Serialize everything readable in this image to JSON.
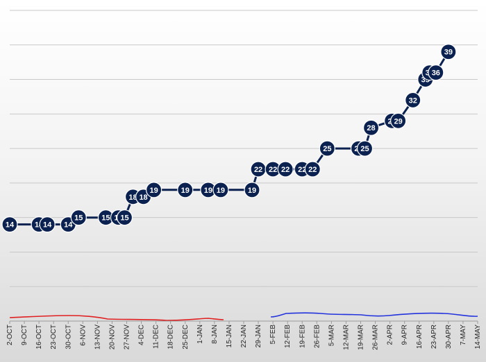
{
  "chart_data": {
    "type": "line",
    "title": "",
    "xlabel": "",
    "ylabel": "",
    "grid": true,
    "ylim": [
      0,
      45
    ],
    "colors": {
      "main": "#0b2150",
      "red": "#e02020",
      "blue": "#2233dd",
      "marker": "#0b2150"
    },
    "x_ticks": [
      "2-OCT",
      "9-OCT",
      "16-OCT",
      "23-OCT",
      "30-OCT",
      "6-NOV",
      "13-NOV",
      "20-NOV",
      "27-NOV",
      "4-DEC",
      "11-DEC",
      "18-DEC",
      "25-DEC",
      "1-JAN",
      "8-JAN",
      "15-JAN",
      "22-JAN",
      "29-JAN",
      "5-FEB",
      "12-FEB",
      "19-FEB",
      "26-FEB",
      "5-MAR",
      "12-MAR",
      "19-MAR",
      "26-MAR",
      "2-APR",
      "9-APR",
      "16-APR",
      "23-APR",
      "30-APR",
      "7-MAY",
      "14-MAY"
    ],
    "series": [
      {
        "points": [
          {
            "x": "2-OCT",
            "y": 14
          },
          {
            "x": "16-OCT",
            "y": 14
          },
          {
            "x": "20-OCT",
            "y": 14
          },
          {
            "x": "30-OCT",
            "y": 14
          },
          {
            "x": "4-NOV",
            "y": 15
          },
          {
            "x": "17-NOV",
            "y": 15
          },
          {
            "x": "23-NOV",
            "y": 15
          },
          {
            "x": "26-NOV",
            "y": 15
          },
          {
            "x": "30-NOV",
            "y": 18
          },
          {
            "x": "5-DEC",
            "y": 18
          },
          {
            "x": "10-DEC",
            "y": 19
          },
          {
            "x": "25-DEC",
            "y": 19
          },
          {
            "x": "5-JAN",
            "y": 19
          },
          {
            "x": "11-JAN",
            "y": 19
          },
          {
            "x": "26-JAN",
            "y": 19
          },
          {
            "x": "29-JAN",
            "y": 22
          },
          {
            "x": "5-FEB",
            "y": 22
          },
          {
            "x": "11-FEB",
            "y": 22
          },
          {
            "x": "19-FEB",
            "y": 22
          },
          {
            "x": "24-FEB",
            "y": 22
          },
          {
            "x": "3-MAR",
            "y": 25
          },
          {
            "x": "18-MAR",
            "y": 25
          },
          {
            "x": "21-MAR",
            "y": 25
          },
          {
            "x": "24-MAR",
            "y": 28
          },
          {
            "x": "3-APR",
            "y": 29
          },
          {
            "x": "6-APR",
            "y": 29
          },
          {
            "x": "13-APR",
            "y": 32
          },
          {
            "x": "19-APR",
            "y": 35
          },
          {
            "x": "21-APR",
            "y": 36
          },
          {
            "x": "24-APR",
            "y": 36
          },
          {
            "x": "30-APR",
            "y": 39
          }
        ]
      }
    ]
  }
}
